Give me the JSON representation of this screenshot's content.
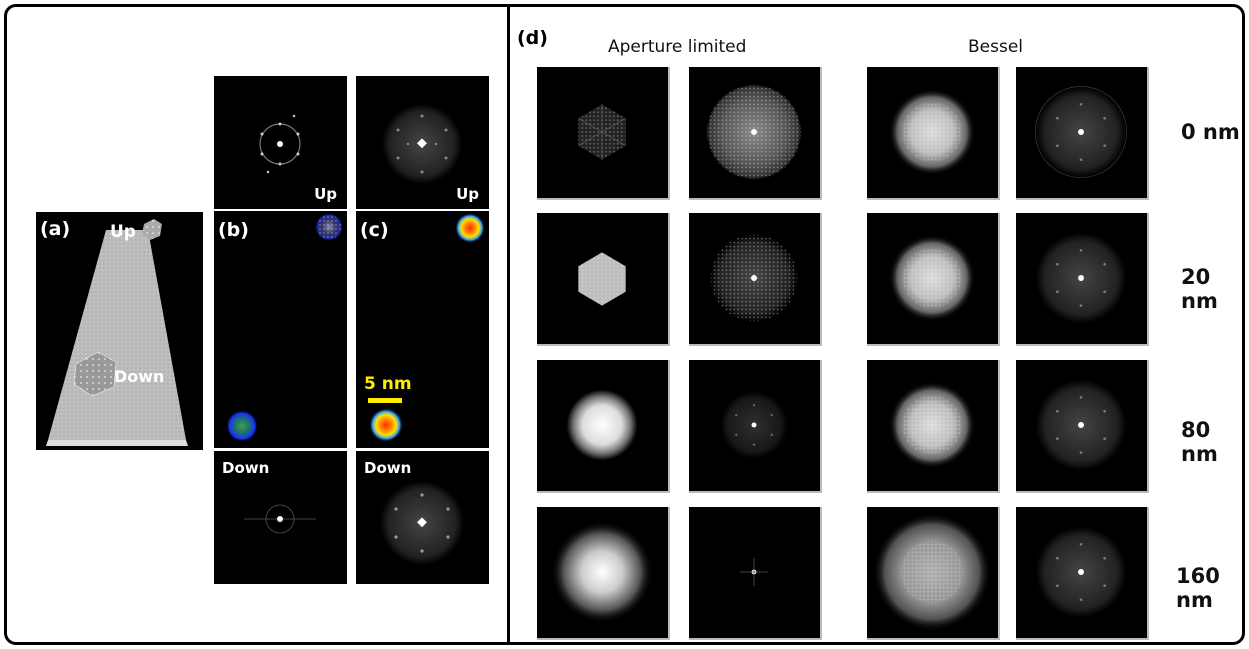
{
  "left": {
    "a": {
      "label": "(a)",
      "up": "Up",
      "down": "Down"
    },
    "b": {
      "label": "(b)",
      "up": "Up",
      "down": "Down"
    },
    "c": {
      "label": "(c)",
      "up": "Up",
      "down": "Down",
      "scalebar": "5 nm"
    }
  },
  "right": {
    "label": "(d)",
    "col_titles": [
      "Aperture limited",
      "Bessel"
    ],
    "rows": [
      "0 nm",
      "20 nm",
      "80 nm",
      "160 nm"
    ]
  }
}
